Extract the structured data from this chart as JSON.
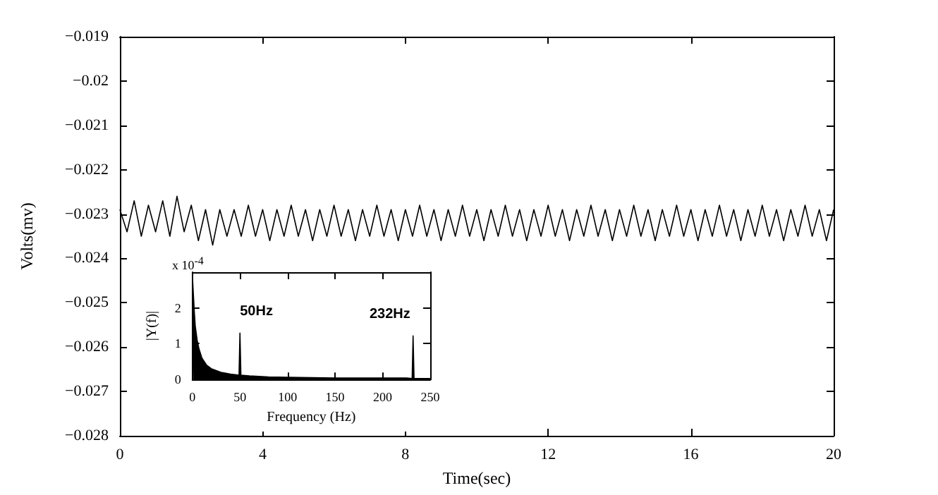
{
  "chart_data": [
    {
      "type": "line",
      "xlabel": "Time(sec)",
      "ylabel": "Volts(mv)",
      "xlim": [
        0,
        20
      ],
      "xticks": [
        0,
        4,
        8,
        12,
        16,
        20
      ],
      "ylim": [
        -0.028,
        -0.019
      ],
      "yticks": [
        -0.028,
        -0.027,
        -0.026,
        -0.025,
        -0.024,
        -0.023,
        -0.022,
        -0.021,
        -0.02,
        -0.019
      ],
      "grid": false,
      "marker": "none",
      "x": [
        0,
        0.2,
        0.4,
        0.6,
        0.8,
        1,
        1.2,
        1.4,
        1.6,
        1.8,
        2,
        2.2,
        2.4,
        2.6,
        2.8,
        3,
        3.2,
        3.4,
        3.6,
        3.8,
        4,
        4.2,
        4.4,
        4.6,
        4.8,
        5,
        5.2,
        5.4,
        5.6,
        5.8,
        6,
        6.2,
        6.4,
        6.6,
        6.8,
        7,
        7.2,
        7.4,
        7.6,
        7.8,
        8,
        8.2,
        8.4,
        8.6,
        8.8,
        9,
        9.2,
        9.4,
        9.6,
        9.8,
        10,
        10.2,
        10.4,
        10.6,
        10.8,
        11,
        11.2,
        11.4,
        11.6,
        11.8,
        12,
        12.2,
        12.4,
        12.6,
        12.8,
        13,
        13.2,
        13.4,
        13.6,
        13.8,
        14,
        14.2,
        14.4,
        14.6,
        14.8,
        15,
        15.2,
        15.4,
        15.6,
        15.8,
        16,
        16.2,
        16.4,
        16.6,
        16.8,
        17,
        17.2,
        17.4,
        17.6,
        17.8,
        18,
        18.2,
        18.4,
        18.6,
        18.8,
        19,
        19.2,
        19.4,
        19.6,
        19.8,
        20
      ],
      "series": [
        {
          "color": "#000000",
          "values": [
            -0.0229,
            -0.0234,
            -0.0227,
            -0.0235,
            -0.0228,
            -0.0234,
            -0.0227,
            -0.0235,
            -0.0226,
            -0.0234,
            -0.0228,
            -0.0236,
            -0.0229,
            -0.0237,
            -0.0229,
            -0.0235,
            -0.0229,
            -0.0235,
            -0.0228,
            -0.0235,
            -0.0229,
            -0.0236,
            -0.0229,
            -0.0235,
            -0.0228,
            -0.0235,
            -0.0229,
            -0.0236,
            -0.0229,
            -0.0235,
            -0.0228,
            -0.0235,
            -0.0229,
            -0.0236,
            -0.0229,
            -0.0235,
            -0.0228,
            -0.0235,
            -0.0229,
            -0.0236,
            -0.0229,
            -0.0235,
            -0.0228,
            -0.0235,
            -0.0229,
            -0.0236,
            -0.0229,
            -0.0235,
            -0.0228,
            -0.0235,
            -0.0229,
            -0.0236,
            -0.0229,
            -0.0235,
            -0.0228,
            -0.0235,
            -0.0229,
            -0.0236,
            -0.0229,
            -0.0235,
            -0.0228,
            -0.0235,
            -0.0229,
            -0.0236,
            -0.0229,
            -0.0235,
            -0.0228,
            -0.0235,
            -0.0229,
            -0.0236,
            -0.0229,
            -0.0235,
            -0.0228,
            -0.0235,
            -0.0229,
            -0.0236,
            -0.0229,
            -0.0235,
            -0.0228,
            -0.0235,
            -0.0229,
            -0.0236,
            -0.0229,
            -0.0235,
            -0.0228,
            -0.0235,
            -0.0229,
            -0.0236,
            -0.0229,
            -0.0235,
            -0.0228,
            -0.0235,
            -0.0229,
            -0.0236,
            -0.0229,
            -0.0235,
            -0.0228,
            -0.0235,
            -0.0229,
            -0.0236,
            -0.0229
          ]
        }
      ]
    },
    {
      "type": "area",
      "xlabel": "Frequency (Hz)",
      "ylabel": "|Y(f)|",
      "xlim": [
        0,
        250
      ],
      "xticks": [
        0,
        50,
        100,
        150,
        200,
        250
      ],
      "ylim": [
        0,
        3
      ],
      "yticks": [
        0,
        1,
        2
      ],
      "grid": false,
      "marker": "none",
      "annotations": [
        "x 10$^{-4}$",
        {
          "text": "50Hz",
          "x": 50,
          "y": 1.3
        },
        {
          "text": "232Hz",
          "x": 232,
          "y": 1.22
        }
      ],
      "x": [
        0,
        1,
        2,
        3,
        5,
        7,
        10,
        15,
        20,
        30,
        40,
        49,
        50,
        51,
        60,
        80,
        100,
        125,
        150,
        175,
        200,
        225,
        231,
        232,
        233,
        240,
        250
      ],
      "series": [
        {
          "color": "#000000",
          "values": [
            2.9,
            2.4,
            1.9,
            1.5,
            1.1,
            0.85,
            0.6,
            0.4,
            0.3,
            0.2,
            0.15,
            0.12,
            1.3,
            0.12,
            0.1,
            0.07,
            0.06,
            0.05,
            0.04,
            0.04,
            0.04,
            0.04,
            0.03,
            1.22,
            0.03,
            0.03,
            0.03
          ]
        }
      ]
    }
  ]
}
